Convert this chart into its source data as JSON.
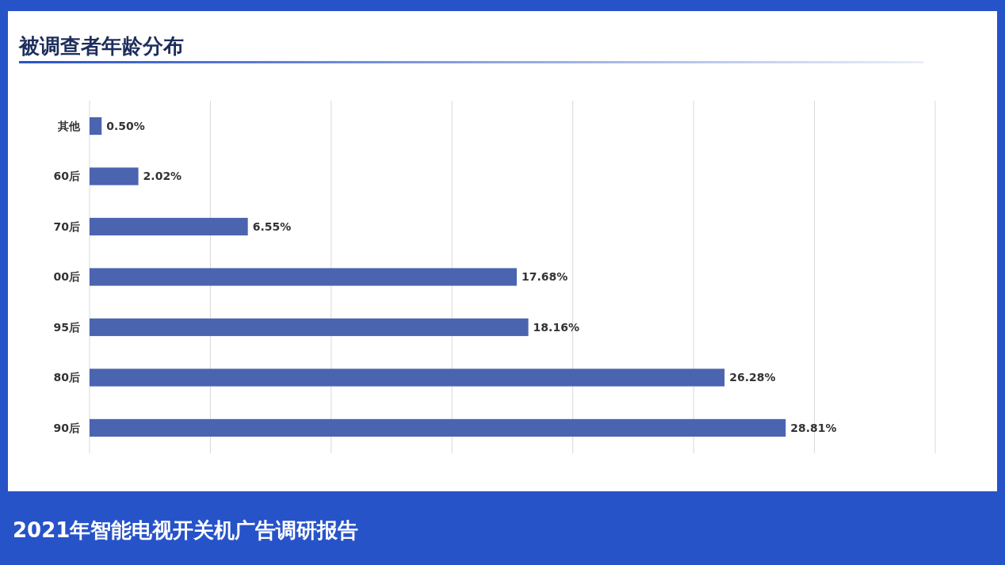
{
  "chart_data": {
    "type": "bar",
    "orientation": "horizontal",
    "title": "被调查者年龄分布",
    "annotations": [
      "2021年智能电视开关机广告调研报告"
    ],
    "categories": [
      "其他",
      "60后",
      "70后",
      "00后",
      "95后",
      "80后",
      "90后"
    ],
    "values": [
      0.5,
      2.02,
      6.55,
      17.68,
      18.16,
      26.28,
      28.81
    ],
    "value_labels": [
      "0.50%",
      "2.02%",
      "6.55%",
      "17.68%",
      "18.16%",
      "26.28%",
      "28.81%"
    ],
    "color": "#4a64b0",
    "xlim": [
      0,
      35
    ],
    "xticks": [
      {
        "value": 0,
        "label": null
      },
      {
        "value": 5,
        "label": null
      },
      {
        "value": 10,
        "label": null
      },
      {
        "value": 15,
        "label": null
      },
      {
        "value": 20,
        "label": null
      },
      {
        "value": 25,
        "label": null
      },
      {
        "value": 30,
        "label": null
      },
      {
        "value": 35,
        "label": null
      }
    ],
    "grid": "x",
    "tick_labels": "y"
  }
}
